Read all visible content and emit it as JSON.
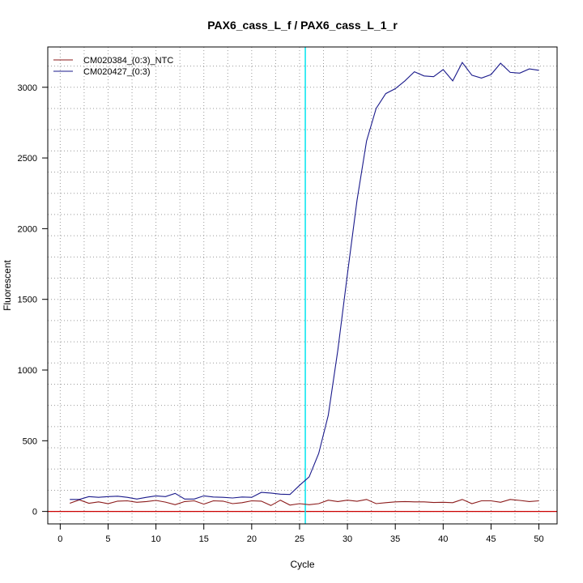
{
  "chart_data": {
    "type": "line",
    "title": "PAX6_cass_L_f / PAX6_cass_L_1_r",
    "xlabel": "Cycle",
    "ylabel": "Fluorescent",
    "xlim": [
      -1.3,
      51.9
    ],
    "ylim": [
      -88,
      3285
    ],
    "x_ticks": [
      0,
      5,
      10,
      15,
      20,
      25,
      30,
      35,
      40,
      45,
      50
    ],
    "y_ticks": [
      0,
      500,
      1000,
      1500,
      2000,
      2500,
      3000
    ],
    "grid": true,
    "grid_x": [
      0,
      2.5,
      5,
      7.5,
      10,
      12.5,
      15,
      17.5,
      20,
      22.5,
      25,
      27.5,
      30,
      32.5,
      35,
      37.5,
      40,
      42.5,
      45,
      47.5,
      50
    ],
    "grid_y": [
      0,
      150,
      300,
      450,
      600,
      750,
      900,
      1050,
      1200,
      1350,
      1500,
      1650,
      1800,
      1950,
      2100,
      2250,
      2400,
      2550,
      2700,
      2850,
      3000,
      3150
    ],
    "legend_position": "top-left",
    "threshold": {
      "x": 25.6,
      "color": "#00e5ee"
    },
    "baseline": {
      "y": 0,
      "color": "#cc0000"
    },
    "x": [
      1,
      2,
      3,
      4,
      5,
      6,
      7,
      8,
      9,
      10,
      11,
      12,
      13,
      14,
      15,
      16,
      17,
      18,
      19,
      20,
      21,
      22,
      23,
      24,
      25,
      26,
      27,
      28,
      29,
      30,
      31,
      32,
      33,
      34,
      35,
      36,
      37,
      38,
      39,
      40,
      41,
      42,
      43,
      44,
      45,
      46,
      47,
      48,
      49,
      50
    ],
    "series": [
      {
        "name": "CM020384_(0:3)_NTC",
        "color": "#8b1a1a",
        "values": [
          58,
          82,
          58,
          68,
          55,
          73,
          75,
          65,
          70,
          78,
          66,
          48,
          70,
          75,
          52,
          75,
          73,
          55,
          62,
          75,
          73,
          42,
          80,
          45,
          55,
          48,
          55,
          80,
          70,
          80,
          72,
          85,
          55,
          62,
          68,
          70,
          68,
          68,
          63,
          65,
          62,
          85,
          55,
          75,
          75,
          65,
          85,
          78,
          70,
          75
        ]
      },
      {
        "name": "CM020427_(0:3)",
        "color": "#1a1a8b",
        "values": [
          85,
          85,
          105,
          100,
          105,
          108,
          100,
          88,
          100,
          110,
          105,
          128,
          88,
          88,
          110,
          102,
          100,
          95,
          102,
          100,
          135,
          130,
          122,
          120,
          185,
          245,
          410,
          680,
          1140,
          1680,
          2200,
          2620,
          2850,
          2955,
          2990,
          3045,
          3110,
          3080,
          3075,
          3125,
          3045,
          3175,
          3085,
          3065,
          3090,
          3170,
          3105,
          3100,
          3130,
          3120
        ]
      }
    ]
  }
}
